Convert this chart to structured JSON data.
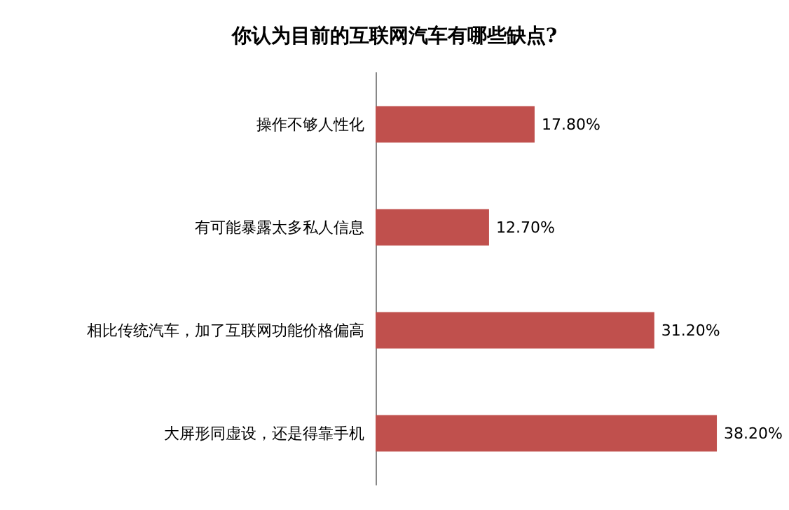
{
  "chart_data": {
    "type": "bar",
    "orientation": "horizontal",
    "title": "你认为目前的互联网汽车有哪些缺点?",
    "categories": [
      "操作不够人性化",
      "有可能暴露太多私人信息",
      "相比传统汽车，加了互联网功能价格偏高",
      "大屏形同虚设，还是得靠手机"
    ],
    "values": [
      17.8,
      12.7,
      31.2,
      38.2
    ],
    "value_labels": [
      "17.80%",
      "12.70%",
      "31.20%",
      "38.20%"
    ],
    "color": "#c0504d"
  }
}
